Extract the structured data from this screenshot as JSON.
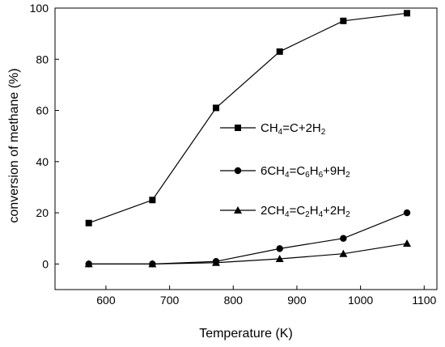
{
  "chart_data": {
    "type": "line",
    "xlabel": "Temperature (K)",
    "ylabel": "conversion of methane (%)",
    "xlim": [
      520,
      1120
    ],
    "ylim": [
      -10,
      100
    ],
    "xticks": [
      600,
      700,
      800,
      900,
      1000,
      1100
    ],
    "yticks": [
      0,
      20,
      40,
      60,
      80,
      100
    ],
    "grid": false,
    "legend_position": "center-right",
    "x": [
      573,
      673,
      773,
      873,
      973,
      1073
    ],
    "series": [
      {
        "name": "CH4=C+2H2",
        "name_parts": [
          [
            "CH",
            ""
          ],
          [
            "4",
            "sub"
          ],
          [
            "=C+2H",
            ""
          ],
          [
            "2",
            "sub"
          ]
        ],
        "marker": "square",
        "values": [
          16,
          25,
          61,
          83,
          95,
          98
        ]
      },
      {
        "name": "6CH4=C6H6+9H2",
        "name_parts": [
          [
            "6CH",
            ""
          ],
          [
            "4",
            "sub"
          ],
          [
            "=C",
            ""
          ],
          [
            "6",
            "sub"
          ],
          [
            "H",
            ""
          ],
          [
            "6",
            "sub"
          ],
          [
            "+9H",
            ""
          ],
          [
            "2",
            "sub"
          ]
        ],
        "marker": "circle",
        "values": [
          0,
          0,
          1,
          6,
          10,
          20
        ]
      },
      {
        "name": "2CH4=C2H4+2H2",
        "name_parts": [
          [
            "2CH",
            ""
          ],
          [
            "4",
            "sub"
          ],
          [
            "=C",
            ""
          ],
          [
            "2",
            "sub"
          ],
          [
            "H",
            ""
          ],
          [
            "4",
            "sub"
          ],
          [
            "+2H",
            ""
          ],
          [
            "2",
            "sub"
          ]
        ],
        "marker": "triangle",
        "values": [
          0,
          0,
          0.5,
          2,
          4,
          8
        ]
      }
    ],
    "colors": {
      "line": "#000000",
      "marker": "#000000"
    }
  }
}
